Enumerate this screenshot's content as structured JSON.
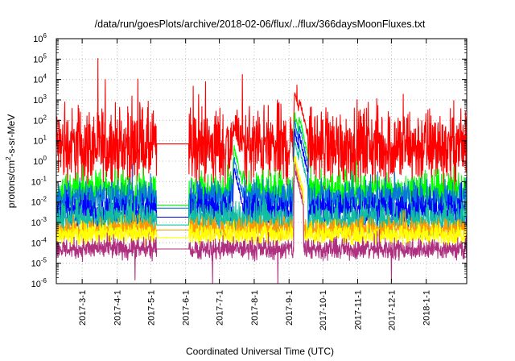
{
  "chart_data": {
    "type": "line",
    "title": "/data/run/goesPlots/archive/2018-02-06/flux/../flux/366daysMoonFluxes.txt",
    "xlabel": "Coordinated Universal Time (UTC)",
    "ylabel": {
      "base": "protons/cm",
      "sup": "2",
      "rest": "-s-sr-MeV"
    },
    "yscale": "log",
    "ylim": [
      1e-06,
      1000000.0
    ],
    "xlim": [
      "2017-02-06",
      "2018-02-06"
    ],
    "grid": true,
    "y_ticks": [
      {
        "exp": "-6",
        "value": 1e-06
      },
      {
        "exp": "-5",
        "value": 1e-05
      },
      {
        "exp": "-4",
        "value": 0.0001
      },
      {
        "exp": "-3",
        "value": 0.001
      },
      {
        "exp": "-2",
        "value": 0.01
      },
      {
        "exp": "-1",
        "value": 0.1
      },
      {
        "exp": "0",
        "value": 1
      },
      {
        "exp": "1",
        "value": 10.0
      },
      {
        "exp": "2",
        "value": 100.0
      },
      {
        "exp": "3",
        "value": 1000.0
      },
      {
        "exp": "4",
        "value": 10000.0
      },
      {
        "exp": "5",
        "value": 100000.0
      },
      {
        "exp": "6",
        "value": 1000000.0
      }
    ],
    "y_tick_base": "10",
    "x_ticks": [
      "2017-3-1",
      "2017-4-1",
      "2017-5-1",
      "2017-6-1",
      "2017-7-1",
      "2017-8-1",
      "2017-9-1",
      "2017-10-1",
      "2017-11-1",
      "2017-12-1",
      "2018-1-1"
    ],
    "x_tick_dates": [
      "2017-03-01",
      "2017-04-01",
      "2017-05-01",
      "2017-06-01",
      "2017-07-01",
      "2017-08-01",
      "2017-09-01",
      "2017-10-01",
      "2017-11-01",
      "2017-12-01",
      "2018-01-01"
    ],
    "data_gaps": [
      [
        "2017-05-06",
        "2017-06-04"
      ]
    ],
    "series": [
      {
        "color": "#ff0000",
        "baseline": 5.0,
        "noise": 0.95,
        "gap_level": 7.0,
        "events": [
          {
            "date": "2017-07-14",
            "peak": 50
          },
          {
            "date": "2017-09-06",
            "peak": 2500
          },
          {
            "date": "2017-09-10",
            "peak": 1200
          }
        ]
      },
      {
        "color": "#00ff00",
        "baseline": 0.035,
        "noise": 0.45,
        "gap_level": 0.007,
        "events": [
          {
            "date": "2017-07-14",
            "peak": 5
          },
          {
            "date": "2017-07-22",
            "peak": 0.3
          },
          {
            "date": "2017-09-06",
            "peak": 200
          },
          {
            "date": "2017-09-10",
            "peak": 150
          }
        ]
      },
      {
        "color": "#0a78d8",
        "baseline": 0.015,
        "noise": 0.45,
        "gap_level": 0.005,
        "events": [
          {
            "date": "2017-07-14",
            "peak": 1.5
          },
          {
            "date": "2017-09-06",
            "peak": 80
          },
          {
            "date": "2017-09-10",
            "peak": 60
          }
        ]
      },
      {
        "color": "#0000ff",
        "baseline": 0.004,
        "noise": 0.4,
        "gap_level": 0.0018,
        "events": [
          {
            "date": "2017-07-14",
            "peak": 0.5
          },
          {
            "date": "2017-09-06",
            "peak": 30
          },
          {
            "date": "2017-09-10",
            "peak": 20
          }
        ]
      },
      {
        "color": "#13bfa0",
        "baseline": 0.0015,
        "noise": 0.4,
        "gap_level": 0.00075,
        "events": [
          {
            "date": "2017-09-06",
            "peak": 10
          },
          {
            "date": "2017-09-10",
            "peak": 5
          }
        ]
      },
      {
        "color": "#ff9900",
        "baseline": 0.0005,
        "noise": 0.25,
        "gap_level": 0.00042,
        "events": [
          {
            "date": "2017-09-06",
            "peak": 1
          }
        ]
      },
      {
        "color": "#ffff00",
        "baseline": 0.00026,
        "noise": 0.25,
        "gap_level": 0.00018,
        "events": [
          {
            "date": "2017-09-06",
            "peak": 2
          }
        ]
      },
      {
        "color": "#b03080",
        "baseline": 5e-05,
        "noise": 0.25,
        "gap_level": 5e-05,
        "events": [
          {
            "date": "2017-09-06",
            "peak": 0.5
          }
        ],
        "dips": [
          {
            "date": "2017-04-17",
            "value": 1.5e-06
          },
          {
            "date": "2017-06-25",
            "value": 1e-06
          },
          {
            "date": "2017-08-22",
            "value": 1e-06
          },
          {
            "date": "2017-12-01",
            "value": 1.5e-06
          }
        ]
      }
    ]
  }
}
